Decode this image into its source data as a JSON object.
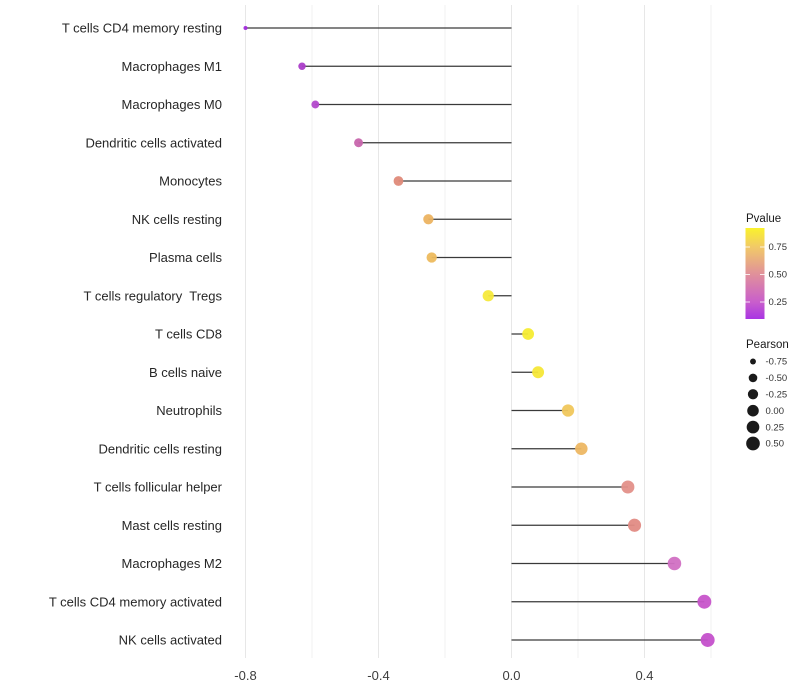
{
  "chart_data": {
    "type": "lollipop",
    "orientation": "horizontal",
    "title": "",
    "xlabel": "",
    "ylabel": "",
    "xlim": [
      -0.9,
      0.66
    ],
    "grid": "vertical light-gray lines every 0.2, no panel border (minimal theme)",
    "x_axis": {
      "tick_values": [
        -0.8,
        -0.4,
        0.0,
        0.4
      ],
      "tick_labels": [
        "-0.8",
        "-0.4",
        "0.0",
        "0.4"
      ],
      "grid_values": [
        -0.8,
        -0.6,
        -0.4,
        -0.2,
        0.0,
        0.2,
        0.4,
        0.6
      ]
    },
    "points": [
      {
        "label": "T cells CD4 memory resting",
        "pearson": -0.8,
        "color": "#A22BDC"
      },
      {
        "label": "Macrophages M1",
        "pearson": -0.63,
        "color": "#AB3DC9"
      },
      {
        "label": "Macrophages M0",
        "pearson": -0.59,
        "color": "#B248CB"
      },
      {
        "label": "Dendritic cells activated",
        "pearson": -0.46,
        "color": "#C765AC"
      },
      {
        "label": "Monocytes",
        "pearson": -0.34,
        "color": "#DF8A79"
      },
      {
        "label": "NK cells resting",
        "pearson": -0.25,
        "color": "#ECB361"
      },
      {
        "label": "Plasma cells",
        "pearson": -0.24,
        "color": "#EDBB5E"
      },
      {
        "label": "T cells regulatory  Tregs",
        "pearson": -0.07,
        "color": "#F5E93B"
      },
      {
        "label": "T cells CD8",
        "pearson": 0.05,
        "color": "#F6EC33"
      },
      {
        "label": "B cells naive",
        "pearson": 0.08,
        "color": "#F5E738"
      },
      {
        "label": "Neutrophils",
        "pearson": 0.17,
        "color": "#F0C75C"
      },
      {
        "label": "Dendritic cells resting",
        "pearson": 0.21,
        "color": "#EDB763"
      },
      {
        "label": "T cells follicular helper",
        "pearson": 0.35,
        "color": "#E39089"
      },
      {
        "label": "Mast cells resting",
        "pearson": 0.37,
        "color": "#E28B84"
      },
      {
        "label": "Macrophages M2",
        "pearson": 0.49,
        "color": "#D170C3"
      },
      {
        "label": "T cells CD4 memory activated",
        "pearson": 0.58,
        "color": "#C754CA"
      },
      {
        "label": "NK cells activated",
        "pearson": 0.59,
        "color": "#C450CB"
      }
    ],
    "legends": {
      "pvalue": {
        "title": "Pvalue",
        "tick_labels": [
          "0.75",
          "0.50",
          "0.25"
        ],
        "gradient_stops": [
          {
            "offset": 0.0,
            "color": "#FAF22C"
          },
          {
            "offset": 0.21,
            "color": "#F1C968"
          },
          {
            "offset": 0.51,
            "color": "#E0909B"
          },
          {
            "offset": 0.81,
            "color": "#C95FCB"
          },
          {
            "offset": 1.0,
            "color": "#A935E3"
          }
        ]
      },
      "pearson": {
        "title": "Pearson",
        "entries": [
          {
            "label": "-0.75",
            "value": -0.75
          },
          {
            "label": "-0.50",
            "value": -0.5
          },
          {
            "label": "-0.25",
            "value": -0.25
          },
          {
            "label": "0.00",
            "value": 0.0
          },
          {
            "label": "0.25",
            "value": 0.25
          },
          {
            "label": "0.50",
            "value": 0.5
          }
        ]
      }
    },
    "style": {
      "stem_color": "#3A3A3A",
      "grid_major_color": "#E7E7E7",
      "grid_minor_color": "#F1F1F1",
      "legend_dot_color": "#1A1A1A",
      "background": "#FFFFFF"
    }
  }
}
